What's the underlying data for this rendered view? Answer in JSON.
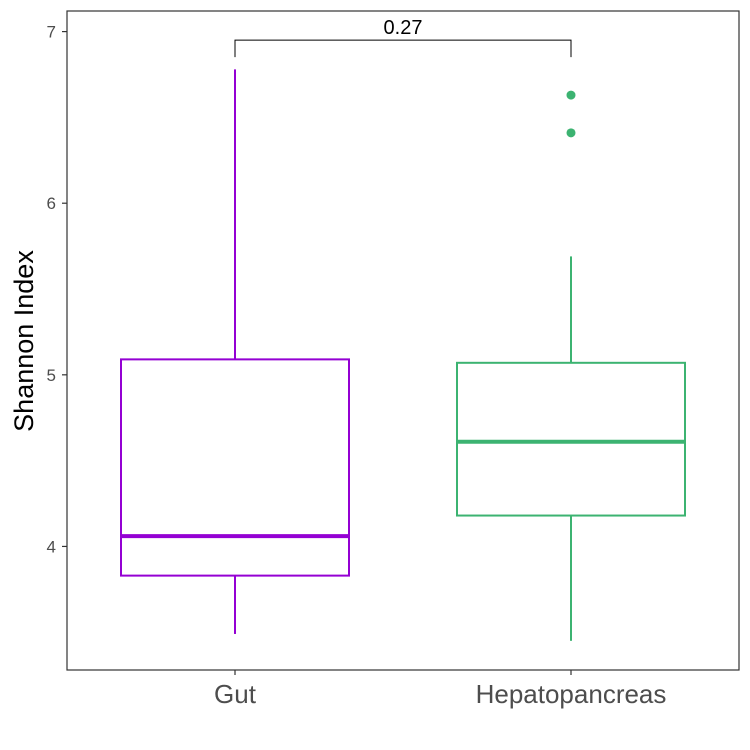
{
  "chart_data": {
    "type": "box",
    "title": "",
    "xlabel": "",
    "ylabel": "Shannon Index",
    "ylim": [
      3.28,
      7.12
    ],
    "yticks": [
      4,
      5,
      6,
      7
    ],
    "grid": false,
    "legend": "none",
    "categories": [
      "Gut",
      "Hepatopancreas"
    ],
    "boxes": [
      {
        "category": "Gut",
        "color": "#9400D3",
        "whisker_low": 3.49,
        "q1": 3.83,
        "median": 4.06,
        "q3": 5.09,
        "whisker_high": 6.78,
        "outliers": []
      },
      {
        "category": "Hepatopancreas",
        "color": "#3CB371",
        "whisker_low": 3.45,
        "q1": 4.18,
        "median": 4.61,
        "q3": 5.07,
        "whisker_high": 5.69,
        "outliers": [
          6.63,
          6.41
        ]
      }
    ],
    "annotations": [
      {
        "text": "0.27",
        "between": [
          "Gut",
          "Hepatopancreas"
        ],
        "y": 6.95
      }
    ]
  }
}
